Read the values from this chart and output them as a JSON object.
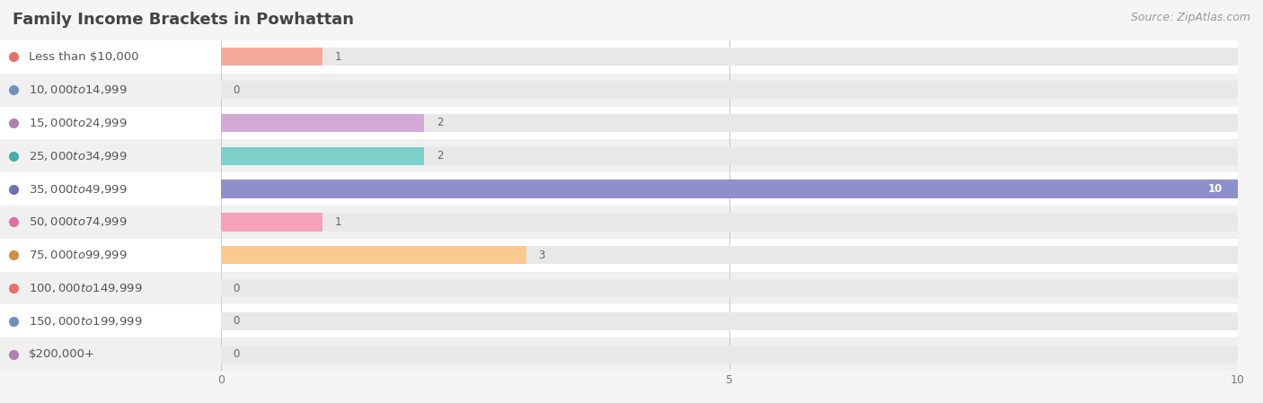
{
  "title": "Family Income Brackets in Powhattan",
  "source": "Source: ZipAtlas.com",
  "categories": [
    "Less than $10,000",
    "$10,000 to $14,999",
    "$15,000 to $24,999",
    "$25,000 to $34,999",
    "$35,000 to $49,999",
    "$50,000 to $74,999",
    "$75,000 to $99,999",
    "$100,000 to $149,999",
    "$150,000 to $199,999",
    "$200,000+"
  ],
  "values": [
    1,
    0,
    2,
    2,
    10,
    1,
    3,
    0,
    0,
    0
  ],
  "bar_colors": [
    "#f5a99b",
    "#a9c5e1",
    "#d5a9d5",
    "#7dcfc9",
    "#8f8fcc",
    "#f5a1b9",
    "#f9c98d",
    "#f5a99b",
    "#a9c5e1",
    "#d5a9d5"
  ],
  "label_dot_colors": [
    "#e8706a",
    "#7090c0",
    "#b080b0",
    "#40b0a8",
    "#7070bb",
    "#e070a0",
    "#d09040",
    "#e8706a",
    "#7090c0",
    "#b080b0"
  ],
  "row_colors": [
    "#ffffff",
    "#f0f0f0"
  ],
  "xlim": [
    0,
    10
  ],
  "xticks": [
    0,
    5,
    10
  ],
  "bg_color": "#f5f5f5",
  "bar_bg_color": "#e8e8e8",
  "title_fontsize": 13,
  "label_fontsize": 9.5,
  "value_fontsize": 8.5,
  "title_color": "#444444",
  "label_color": "#555555",
  "value_color_light": "#ffffff",
  "value_color_dark": "#666666",
  "source_fontsize": 9
}
